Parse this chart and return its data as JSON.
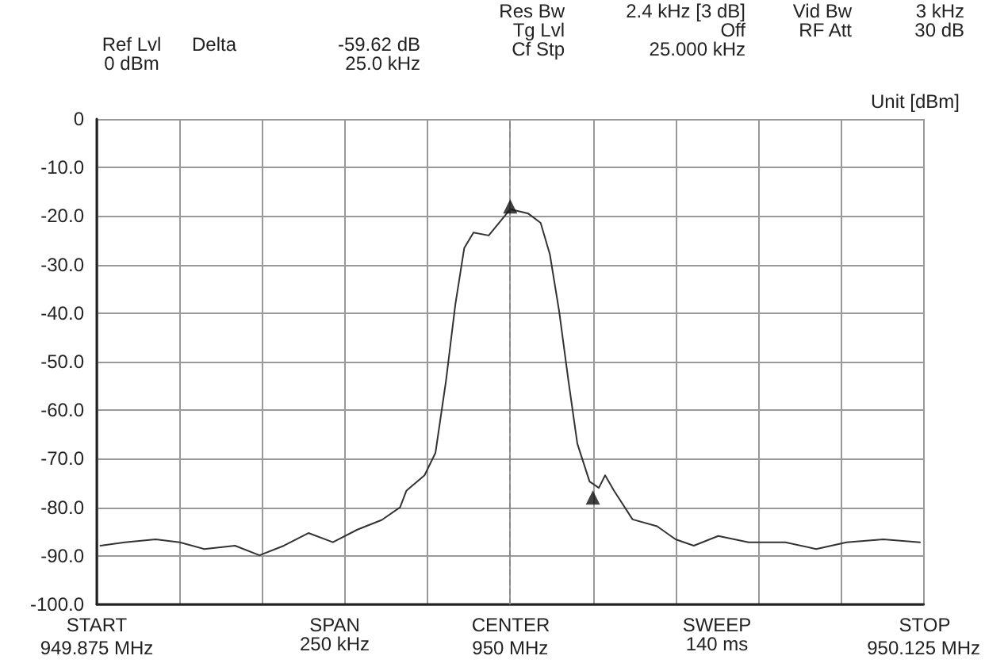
{
  "chart_data": {
    "type": "line",
    "ylabel": "Unit [dBm]",
    "annotations": [
      "Ref Lvl\n0 dBm",
      "Delta",
      "-59.62 dB\n25.0 kHz",
      "Res Bw\nTg Lvl\nCf Stp",
      "2.4 kHz [3 dB]\nOff\n25.000 kHz",
      "Vid Bw\nRF Att",
      "3 kHz\n30 dB",
      "SPAN\n250 kHz",
      "SWEEP\n140 ms",
      "START",
      "CENTER",
      "STOP"
    ],
    "xlim": [
      949.875,
      950.125
    ],
    "xticks": [
      {
        "value": 949.875,
        "label": "949.875 MHz"
      },
      {
        "value": 949.9,
        "label": null
      },
      {
        "value": 949.925,
        "label": null
      },
      {
        "value": 949.95,
        "label": null
      },
      {
        "value": 949.975,
        "label": null
      },
      {
        "value": 950,
        "label": "950 MHz"
      },
      {
        "value": 950.025,
        "label": null
      },
      {
        "value": 950.05,
        "label": null
      },
      {
        "value": 950.075,
        "label": null
      },
      {
        "value": 950.1,
        "label": null
      },
      {
        "value": 950.125,
        "label": "950.125 MHz"
      }
    ],
    "ylim": [
      -100,
      0
    ],
    "yticks": [
      0,
      {
        "value": -10,
        "label": "-10.0"
      },
      {
        "value": -20,
        "label": "-20.0"
      },
      {
        "value": -30,
        "label": "-30.0"
      },
      {
        "value": -40,
        "label": "-40.0"
      },
      {
        "value": -50,
        "label": "-50.0"
      },
      {
        "value": -60,
        "label": "-60.0"
      },
      {
        "value": -70,
        "label": "-70.0"
      },
      {
        "value": -80,
        "label": "-80.0"
      },
      {
        "value": -90,
        "label": "-90.0"
      },
      {
        "value": -100,
        "label": "-100.0"
      }
    ],
    "grid": true,
    "ref_lines": [
      {
        "axis": "x",
        "value": 950,
        "label": null,
        "color": "#888888",
        "line_style": "dashed"
      }
    ],
    "series": [
      {
        "color": "#333333",
        "marker": "none",
        "x": [
          949.8761,
          949.8835,
          949.8928,
          949.9001,
          949.9075,
          949.9168,
          949.9242,
          949.9316,
          949.939,
          949.9464,
          949.9538,
          949.9612,
          949.9667,
          949.9686,
          949.9741,
          949.9774,
          949.9806,
          949.9834,
          949.9861,
          949.9889,
          949.9935,
          950,
          950.0055,
          950.0092,
          950.012,
          950.0148,
          950.0176,
          950.0203,
          950.024,
          950.0268,
          950.0287,
          950.0314,
          950.037,
          950.0444,
          950.05,
          950.0555,
          950.0629,
          950.0721,
          950.0832,
          950.0925,
          950.1017,
          950.1128,
          950.1239
        ],
        "values": [
          -87.9,
          -87.2,
          -86.6,
          -87.2,
          -88.6,
          -87.9,
          -89.9,
          -87.9,
          -85.3,
          -87.2,
          -84.6,
          -82.6,
          -80,
          -76.6,
          -73.4,
          -68.8,
          -53.9,
          -38.3,
          -26.6,
          -23.4,
          -24,
          -18.6,
          -19.5,
          -21.4,
          -27.9,
          -39.6,
          -53.9,
          -66.9,
          -74.7,
          -76,
          -73.4,
          -76.6,
          -82.5,
          -83.9,
          -86.6,
          -87.9,
          -85.9,
          -87.2,
          -87.2,
          -88.6,
          -87.2,
          -86.6,
          -87.2
        ]
      },
      {
        "type": "scatter",
        "color": "#111111",
        "marker": "triangle",
        "x": [
          950,
          950.025
        ],
        "values": [
          -18,
          -78
        ]
      }
    ]
  }
}
